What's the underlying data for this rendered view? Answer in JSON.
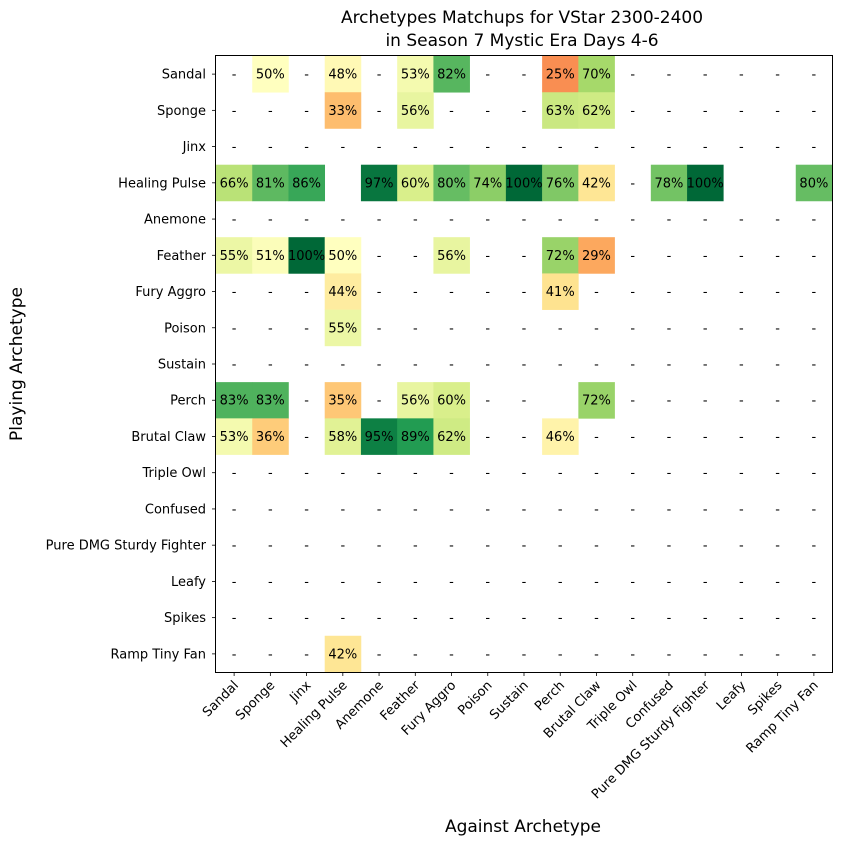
{
  "chart_data": {
    "type": "heatmap",
    "title_line1": "Archetypes Matchups for VStar 2300-2400",
    "title_line2": "in Season 7 Mystic Era Days 4-6",
    "xlabel": "Against Archetype",
    "ylabel": "Playing Archetype",
    "missing_label": "-",
    "value_format": "percent",
    "colormap": "RdYlGn",
    "value_range": [
      0,
      100
    ],
    "x_categories": [
      "Sandal",
      "Sponge",
      "Jinx",
      "Healing Pulse",
      "Anemone",
      "Feather",
      "Fury Aggro",
      "Poison",
      "Sustain",
      "Perch",
      "Brutal Claw",
      "Triple Owl",
      "Confused",
      "Pure DMG Sturdy Fighter",
      "Leafy",
      "Spikes",
      "Ramp Tiny Fan"
    ],
    "y_categories": [
      "Sandal",
      "Sponge",
      "Jinx",
      "Healing Pulse",
      "Anemone",
      "Feather",
      "Fury Aggro",
      "Poison",
      "Sustain",
      "Perch",
      "Brutal Claw",
      "Triple Owl",
      "Confused",
      "Pure DMG Sturdy Fighter",
      "Leafy",
      "Spikes",
      "Ramp Tiny Fan"
    ],
    "values": [
      [
        null,
        50,
        null,
        48,
        null,
        53,
        82,
        null,
        null,
        25,
        70,
        null,
        null,
        null,
        null,
        null,
        null
      ],
      [
        null,
        null,
        null,
        33,
        null,
        56,
        null,
        null,
        null,
        63,
        62,
        null,
        null,
        null,
        null,
        null,
        null
      ],
      [
        null,
        null,
        null,
        null,
        null,
        null,
        null,
        null,
        null,
        null,
        null,
        null,
        null,
        null,
        null,
        null,
        null
      ],
      [
        66,
        81,
        86,
        "",
        97,
        60,
        80,
        74,
        100,
        76,
        42,
        null,
        78,
        100,
        "",
        "",
        80
      ],
      [
        null,
        null,
        null,
        null,
        null,
        null,
        null,
        null,
        null,
        null,
        null,
        null,
        null,
        null,
        null,
        null,
        null
      ],
      [
        55,
        51,
        100,
        50,
        null,
        null,
        56,
        null,
        null,
        72,
        29,
        null,
        null,
        null,
        null,
        null,
        null
      ],
      [
        null,
        null,
        null,
        44,
        null,
        null,
        null,
        null,
        null,
        41,
        null,
        null,
        null,
        null,
        null,
        null,
        null
      ],
      [
        null,
        null,
        null,
        55,
        null,
        null,
        null,
        null,
        null,
        null,
        null,
        null,
        null,
        null,
        null,
        null,
        null
      ],
      [
        null,
        null,
        null,
        null,
        null,
        null,
        null,
        null,
        null,
        null,
        null,
        null,
        null,
        null,
        null,
        null,
        null
      ],
      [
        83,
        83,
        null,
        35,
        null,
        56,
        60,
        null,
        null,
        "",
        72,
        null,
        null,
        null,
        null,
        null,
        null
      ],
      [
        53,
        36,
        null,
        58,
        95,
        89,
        62,
        null,
        null,
        46,
        null,
        null,
        null,
        null,
        null,
        null,
        null
      ],
      [
        null,
        null,
        null,
        null,
        null,
        null,
        null,
        null,
        null,
        null,
        null,
        null,
        null,
        null,
        null,
        null,
        null
      ],
      [
        null,
        null,
        null,
        null,
        null,
        null,
        null,
        null,
        null,
        null,
        null,
        null,
        null,
        null,
        null,
        null,
        null
      ],
      [
        null,
        null,
        null,
        null,
        null,
        null,
        null,
        null,
        null,
        null,
        null,
        null,
        null,
        null,
        null,
        null,
        null
      ],
      [
        null,
        null,
        null,
        null,
        null,
        null,
        null,
        null,
        null,
        null,
        null,
        null,
        null,
        null,
        null,
        null,
        null
      ],
      [
        null,
        null,
        null,
        null,
        null,
        null,
        null,
        null,
        null,
        null,
        null,
        null,
        null,
        null,
        null,
        null,
        null
      ],
      [
        null,
        null,
        null,
        42,
        null,
        null,
        null,
        null,
        null,
        null,
        null,
        null,
        null,
        null,
        null,
        null,
        null
      ]
    ]
  }
}
